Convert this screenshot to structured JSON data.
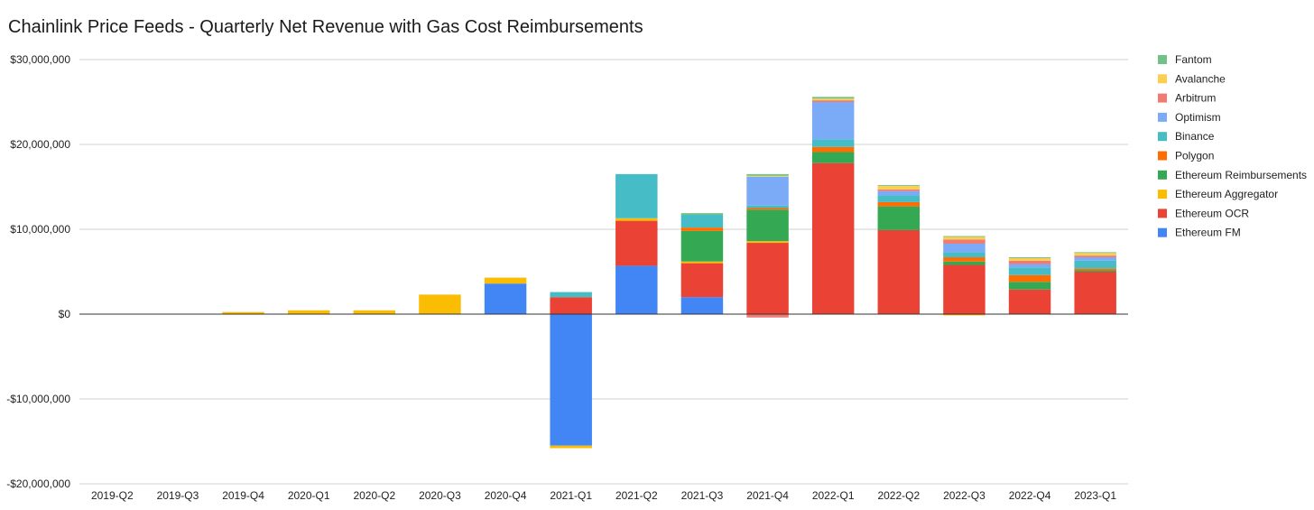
{
  "chart_data": {
    "type": "bar",
    "stacked": true,
    "title": "Chainlink Price Feeds - Quarterly Net Revenue with Gas Cost Reimbursements",
    "xlabel": "",
    "ylabel": "",
    "ylim": [
      -20000000,
      30000000
    ],
    "yticks": [
      -20000000,
      -10000000,
      0,
      10000000,
      20000000,
      30000000
    ],
    "ytick_labels": [
      "-$20,000,000",
      "-$10,000,000",
      "$0",
      "$10,000,000",
      "$20,000,000",
      "$30,000,000"
    ],
    "grid": true,
    "legend_position": "right",
    "categories": [
      "2019-Q2",
      "2019-Q3",
      "2019-Q4",
      "2020-Q1",
      "2020-Q2",
      "2020-Q3",
      "2020-Q4",
      "2021-Q1",
      "2021-Q2",
      "2021-Q3",
      "2021-Q4",
      "2022-Q1",
      "2022-Q2",
      "2022-Q3",
      "2022-Q4",
      "2023-Q1"
    ],
    "series": [
      {
        "name": "Ethereum FM",
        "color": "#4285f4",
        "values": [
          0,
          0,
          0,
          0,
          0,
          0,
          3600000,
          -15500000,
          5700000,
          2000000,
          0,
          0,
          0,
          0,
          0,
          0
        ]
      },
      {
        "name": "Ethereum OCR",
        "color": "#ea4335",
        "values": [
          0,
          0,
          0,
          0,
          0,
          0,
          0,
          2000000,
          5300000,
          4000000,
          8400000,
          17800000,
          9900000,
          5800000,
          2900000,
          5000000
        ]
      },
      {
        "name": "Ethereum Aggregator",
        "color": "#fbbc04",
        "values": [
          0,
          0,
          250000,
          450000,
          450000,
          2300000,
          700000,
          -300000,
          300000,
          200000,
          200000,
          0,
          0,
          -150000,
          0,
          0
        ]
      },
      {
        "name": "Ethereum Reimbursements",
        "color": "#34a853",
        "values": [
          0,
          0,
          0,
          0,
          0,
          0,
          0,
          0,
          0,
          3600000,
          3700000,
          1300000,
          2800000,
          400000,
          900000,
          200000
        ]
      },
      {
        "name": "Polygon",
        "color": "#ff6d01",
        "values": [
          0,
          0,
          0,
          0,
          0,
          0,
          0,
          0,
          0,
          400000,
          200000,
          600000,
          500000,
          500000,
          800000,
          200000
        ]
      },
      {
        "name": "Binance",
        "color": "#46bdc6",
        "values": [
          0,
          0,
          0,
          0,
          0,
          0,
          0,
          600000,
          5200000,
          1500000,
          300000,
          900000,
          800000,
          600000,
          900000,
          900000
        ]
      },
      {
        "name": "Optimism",
        "color": "#7baaf7",
        "values": [
          0,
          0,
          0,
          0,
          0,
          0,
          0,
          0,
          0,
          0,
          3400000,
          4400000,
          500000,
          1000000,
          400000,
          400000
        ]
      },
      {
        "name": "Arbitrum",
        "color": "#f07b72",
        "values": [
          0,
          0,
          0,
          0,
          0,
          0,
          0,
          0,
          0,
          0,
          -400000,
          200000,
          200000,
          500000,
          400000,
          200000
        ]
      },
      {
        "name": "Avalanche",
        "color": "#fcd04f",
        "values": [
          0,
          0,
          0,
          0,
          0,
          0,
          0,
          0,
          0,
          0,
          100000,
          200000,
          400000,
          300000,
          300000,
          300000
        ]
      },
      {
        "name": "Fantom",
        "color": "#71c287",
        "values": [
          0,
          0,
          0,
          0,
          0,
          0,
          0,
          0,
          0,
          200000,
          200000,
          200000,
          100000,
          100000,
          100000,
          100000
        ]
      }
    ]
  }
}
